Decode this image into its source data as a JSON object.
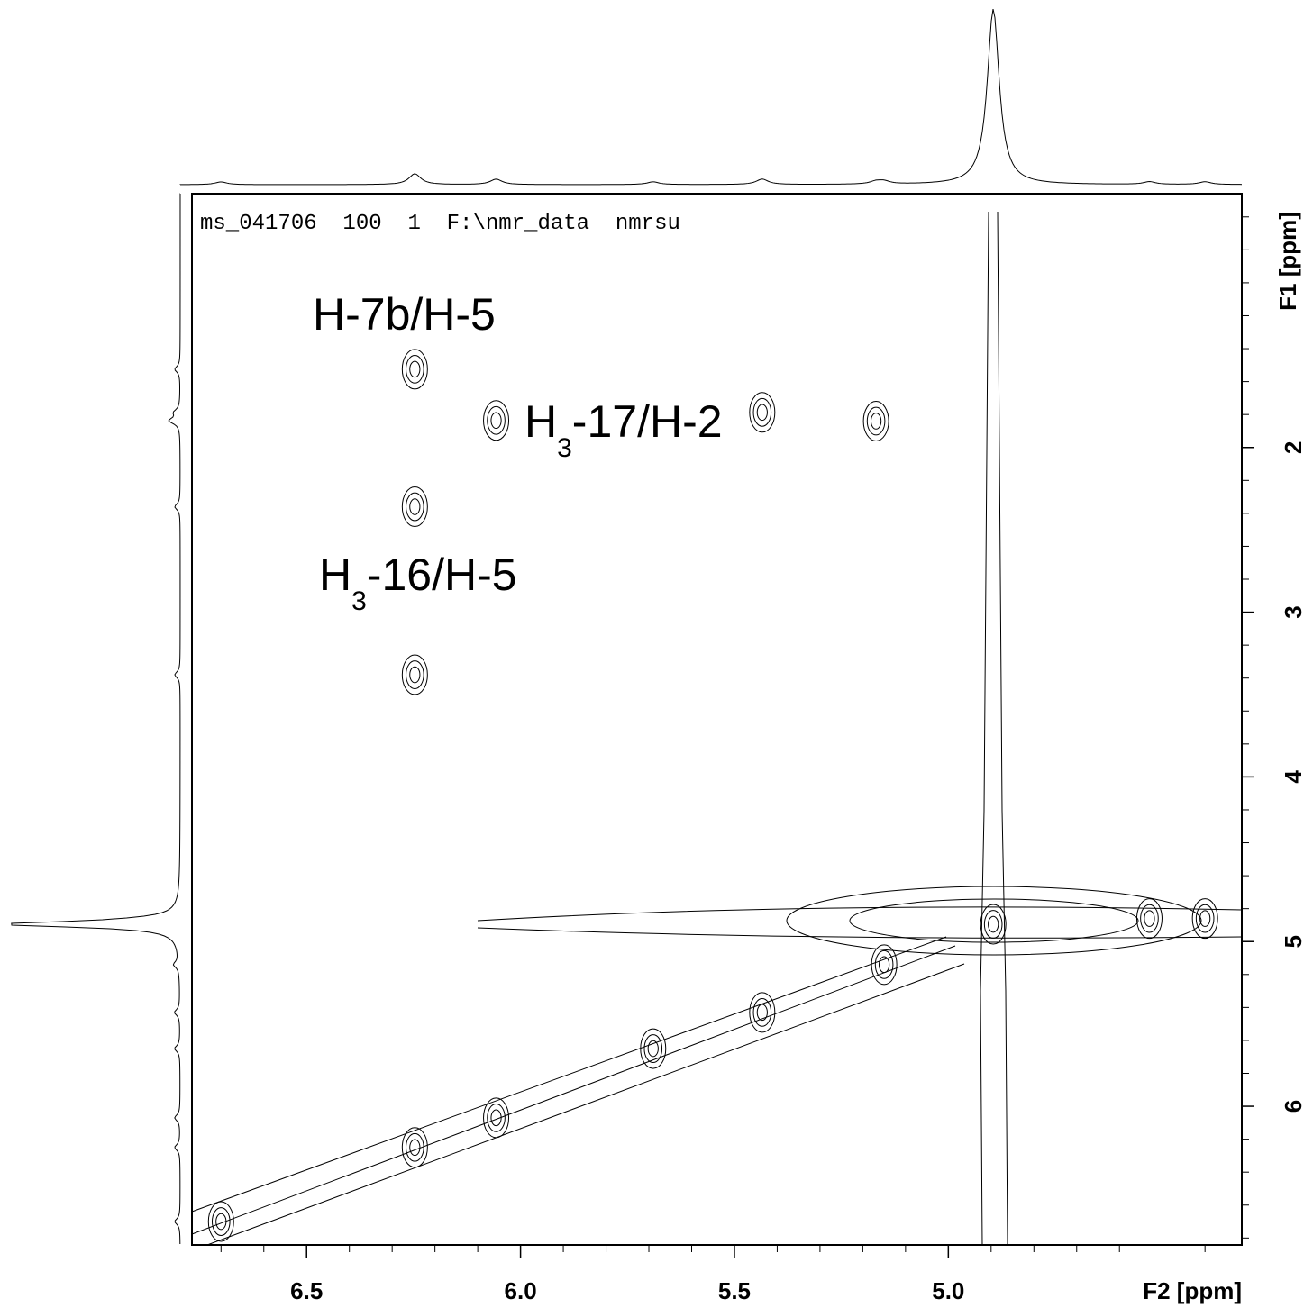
{
  "chart_data": {
    "type": "contour",
    "header": "ms_041706  100  1  F:\\nmr_data  nmrsu",
    "xlabel": "F2 [ppm]",
    "ylabel": "F1 [ppm]",
    "xlim": [
      6.768,
      4.314
    ],
    "ylim": [
      0.459,
      6.842
    ],
    "xticks": [
      6.5,
      {
        "value": 6,
        "label": "6.0"
      },
      5.5,
      {
        "value": 5,
        "label": "5.0"
      }
    ],
    "xminorticks": [
      6.7,
      6.6,
      6.4,
      6.3,
      6.2,
      6.1,
      5.9,
      5.8,
      5.7,
      5.6,
      5.4,
      5.3,
      5.2,
      5.1,
      4.9,
      4.8,
      4.7,
      4.6,
      4.4
    ],
    "yticks": [
      2,
      3,
      4,
      5,
      6
    ],
    "yminorticks": [
      0.6,
      0.8,
      1.0,
      1.2,
      1.4,
      1.6,
      1.8,
      2.2,
      2.4,
      2.6,
      2.8,
      3.2,
      3.4,
      3.6,
      3.8,
      4.2,
      4.4,
      4.6,
      4.8,
      5.2,
      5.4,
      5.6,
      5.8,
      6.2,
      6.4,
      6.6,
      6.8
    ],
    "x": [
      6.247,
      6.247,
      6.057,
      5.435,
      5.169,
      6.247,
      6.7,
      6.247,
      6.057,
      5.69,
      5.435,
      5.15,
      4.895,
      4.53,
      4.4
    ],
    "values": [
      1.525,
      2.36,
      1.836,
      1.787,
      1.84,
      3.38,
      6.7,
      6.25,
      6.07,
      5.65,
      5.43,
      5.14,
      4.895,
      4.86,
      4.86
    ],
    "annotations": [
      {
        "pre": "H-7b/H-5"
      },
      {
        "pre": "H",
        "sub": "3",
        "post": "-17/H-2"
      },
      {
        "pre": "H",
        "sub": "3",
        "post": "-16/H-5"
      }
    ]
  }
}
